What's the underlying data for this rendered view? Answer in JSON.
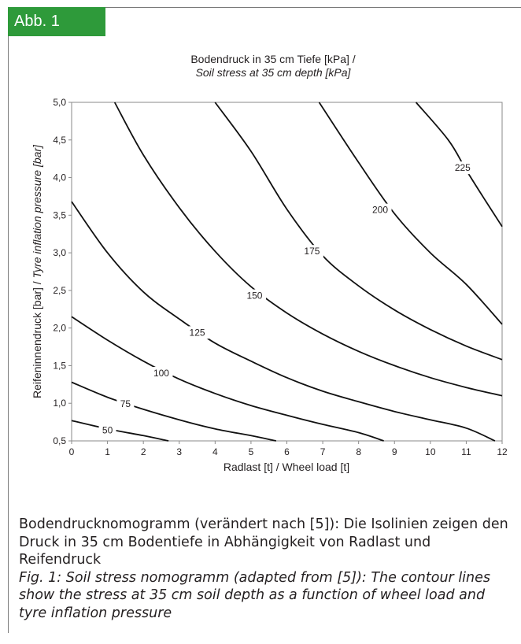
{
  "figure_tag": "Abb. 1",
  "caption": {
    "de": "Bodendrucknomogramm (verändert nach [5]): Die Isolinien zeigen den Druck in 35 cm Bodentiefe in Abhängigkeit von Radlast und Reifendruck",
    "en": "Fig. 1: Soil stress nomogramm (adapted from [5]): The contour lines show the stress at 35 cm soil depth as a function of wheel load and tyre inflation pressure"
  },
  "chart_data": {
    "type": "contour",
    "title": "Bodendruck in 35 cm Tiefe [kPa] /",
    "subtitle": "Soil stress at 35 cm depth [kPa]",
    "xlabel": "Radlast [t] / Wheel load [t]",
    "ylabel_de": "Reifeninnendruck [bar] / ",
    "ylabel_en": "Tyre inflation pressure [bar]",
    "xlim": [
      0,
      12
    ],
    "ylim": [
      0.5,
      5.0
    ],
    "xticks": [
      "0",
      "1",
      "2",
      "3",
      "4",
      "5",
      "6",
      "7",
      "8",
      "9",
      "10",
      "11",
      "12"
    ],
    "yticks": [
      "0,5",
      "1,0",
      "1,5",
      "2,0",
      "2,5",
      "3,0",
      "3,5",
      "4,0",
      "4,5",
      "5,0"
    ],
    "grid": false,
    "series": [
      {
        "name": "50",
        "label_at": [
          1.0,
          0.64
        ],
        "points": [
          [
            0,
            0.77
          ],
          [
            1,
            0.66
          ],
          [
            2,
            0.57
          ],
          [
            2.7,
            0.5
          ]
        ]
      },
      {
        "name": "75",
        "label_at": [
          1.5,
          0.99
        ],
        "points": [
          [
            0,
            1.28
          ],
          [
            1,
            1.08
          ],
          [
            2,
            0.92
          ],
          [
            3,
            0.78
          ],
          [
            4,
            0.66
          ],
          [
            5,
            0.57
          ],
          [
            5.7,
            0.5
          ]
        ]
      },
      {
        "name": "100",
        "label_at": [
          2.5,
          1.4
        ],
        "points": [
          [
            0,
            2.15
          ],
          [
            1,
            1.84
          ],
          [
            2,
            1.56
          ],
          [
            3,
            1.32
          ],
          [
            4,
            1.13
          ],
          [
            5,
            0.97
          ],
          [
            6,
            0.84
          ],
          [
            7,
            0.72
          ],
          [
            8,
            0.61
          ],
          [
            8.7,
            0.5
          ]
        ]
      },
      {
        "name": "125",
        "label_at": [
          3.5,
          1.94
        ],
        "points": [
          [
            0,
            3.68
          ],
          [
            1,
            3.0
          ],
          [
            2,
            2.48
          ],
          [
            3,
            2.12
          ],
          [
            4,
            1.8
          ],
          [
            5,
            1.56
          ],
          [
            6,
            1.34
          ],
          [
            7,
            1.16
          ],
          [
            8,
            1.02
          ],
          [
            9,
            0.89
          ],
          [
            10,
            0.78
          ],
          [
            11,
            0.67
          ],
          [
            11.8,
            0.5
          ]
        ]
      },
      {
        "name": "150",
        "label_at": [
          5.1,
          2.43
        ],
        "points": [
          [
            1.2,
            5.0
          ],
          [
            2,
            4.3
          ],
          [
            3,
            3.6
          ],
          [
            4,
            3.02
          ],
          [
            5,
            2.55
          ],
          [
            6,
            2.2
          ],
          [
            7,
            1.92
          ],
          [
            8,
            1.69
          ],
          [
            9,
            1.5
          ],
          [
            10,
            1.34
          ],
          [
            11,
            1.21
          ],
          [
            12,
            1.1
          ]
        ]
      },
      {
        "name": "175",
        "label_at": [
          6.7,
          3.02
        ],
        "points": [
          [
            4.0,
            5.0
          ],
          [
            5,
            4.35
          ],
          [
            6,
            3.58
          ],
          [
            7,
            2.96
          ],
          [
            8,
            2.56
          ],
          [
            9,
            2.24
          ],
          [
            10,
            1.98
          ],
          [
            11,
            1.76
          ],
          [
            12,
            1.58
          ]
        ]
      },
      {
        "name": "200",
        "label_at": [
          8.6,
          3.57
        ],
        "points": [
          [
            6.9,
            5.0
          ],
          [
            8,
            4.2
          ],
          [
            9,
            3.52
          ],
          [
            10,
            3.0
          ],
          [
            11,
            2.58
          ],
          [
            12,
            2.05
          ]
        ]
      },
      {
        "name": "225",
        "label_at": [
          10.9,
          4.13
        ],
        "points": [
          [
            9.6,
            5.0
          ],
          [
            10.5,
            4.5
          ],
          [
            11,
            4.1
          ],
          [
            11.5,
            3.72
          ],
          [
            12,
            3.35
          ]
        ]
      }
    ]
  }
}
